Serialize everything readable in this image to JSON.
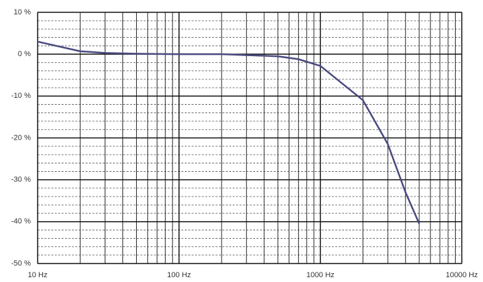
{
  "chart_data": {
    "type": "line",
    "x": [
      10,
      20,
      30,
      50,
      100,
      200,
      500,
      700,
      1000,
      2000,
      3000,
      4000,
      5000
    ],
    "series": [
      {
        "color": "#4a4a80",
        "values": [
          3,
          0.7,
          0.3,
          0.1,
          0,
          0,
          -0.5,
          -1.2,
          -2.8,
          -11,
          -21.5,
          -33,
          -40.5
        ]
      }
    ],
    "xlim": [
      10,
      10000
    ],
    "xscale": "log",
    "xticks": [
      {
        "value": 10,
        "label": "10 Hz"
      },
      {
        "value": 100,
        "label": "100 Hz"
      },
      {
        "value": 1000,
        "label": "1000 Hz"
      },
      {
        "value": 10000,
        "label": "10000 Hz"
      }
    ],
    "ylim": [
      -50,
      10
    ],
    "yticks": [
      {
        "value": -50,
        "label": "-50 %"
      },
      {
        "value": -40,
        "label": "-40 %"
      },
      {
        "value": -30,
        "label": "-30 %"
      },
      {
        "value": -20,
        "label": "-20 %"
      },
      {
        "value": -10,
        "label": "-10 %"
      },
      {
        "value": 0,
        "label": "0 %"
      },
      {
        "value": 10,
        "label": "10 %"
      }
    ],
    "grid": true,
    "minor_grid": true
  }
}
